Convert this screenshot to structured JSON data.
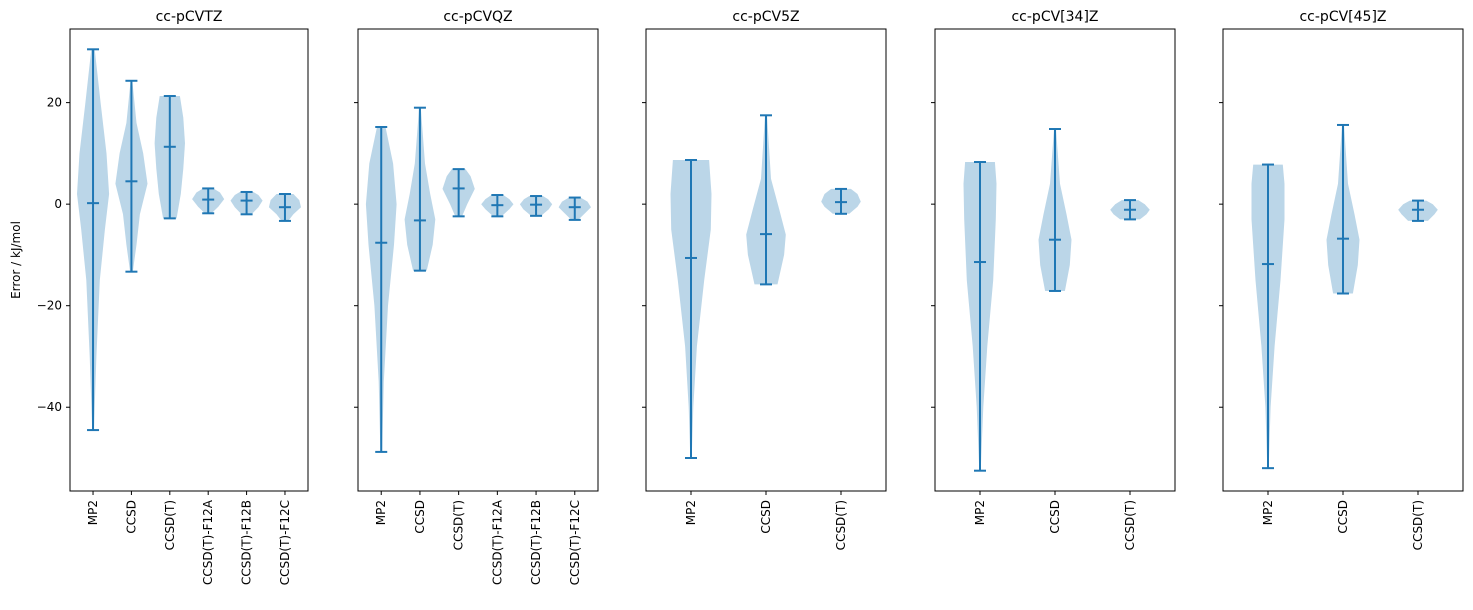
{
  "figure": {
    "ylabel": "Error / kJ/mol",
    "colors": {
      "body": "#1f77b4",
      "line": "#1f77b4"
    }
  },
  "chart_data": [
    {
      "type": "violin",
      "title": "cc-pCVTZ",
      "ylim": [
        -56.5,
        34.5
      ],
      "yticks": [
        -40,
        -20,
        0,
        20
      ],
      "categories": [
        "MP2",
        "CCSD",
        "CCSD(T)",
        "CCSD(T)-F12A",
        "CCSD(T)-F12B",
        "CCSD(T)-F12C"
      ],
      "violins": [
        {
          "min": -44.5,
          "max": 30.5,
          "median": 0.2,
          "width": [
            [
              -44.5,
              0.05
            ],
            [
              -30,
              0.2
            ],
            [
              -15,
              0.4
            ],
            [
              -5,
              0.7
            ],
            [
              2,
              0.95
            ],
            [
              10,
              0.8
            ],
            [
              20,
              0.45
            ],
            [
              30.5,
              0.1
            ]
          ]
        },
        {
          "min": -13.3,
          "max": 24.3,
          "median": 4.5,
          "width": [
            [
              -13.3,
              0.08
            ],
            [
              -8,
              0.3
            ],
            [
              -2,
              0.5
            ],
            [
              4,
              0.95
            ],
            [
              10,
              0.7
            ],
            [
              16,
              0.3
            ],
            [
              24.3,
              0.05
            ]
          ]
        },
        {
          "min": -2.8,
          "max": 21.3,
          "median": 11.3,
          "width": [
            [
              -2.8,
              0.4
            ],
            [
              2,
              0.65
            ],
            [
              7,
              0.8
            ],
            [
              12,
              0.9
            ],
            [
              17,
              0.8
            ],
            [
              21.3,
              0.6
            ]
          ]
        },
        {
          "min": -1.8,
          "max": 3.1,
          "median": 0.9,
          "width": [
            [
              -1.8,
              0.2
            ],
            [
              -0.5,
              0.6
            ],
            [
              1,
              0.95
            ],
            [
              2.3,
              0.7
            ],
            [
              3.1,
              0.3
            ]
          ]
        },
        {
          "min": -2.0,
          "max": 2.4,
          "median": 0.7,
          "width": [
            [
              -2,
              0.3
            ],
            [
              -0.6,
              0.7
            ],
            [
              0.7,
              0.95
            ],
            [
              1.8,
              0.7
            ],
            [
              2.4,
              0.4
            ]
          ]
        },
        {
          "min": -3.3,
          "max": 2.0,
          "median": -0.6,
          "width": [
            [
              -3.3,
              0.2
            ],
            [
              -2,
              0.5
            ],
            [
              -0.6,
              0.95
            ],
            [
              0.8,
              0.85
            ],
            [
              2,
              0.5
            ]
          ]
        }
      ]
    },
    {
      "type": "violin",
      "title": "cc-pCVQZ",
      "ylim": [
        -56.5,
        34.5
      ],
      "yticks": [
        -40,
        -20,
        0,
        20
      ],
      "categories": [
        "MP2",
        "CCSD",
        "CCSD(T)",
        "CCSD(T)-F12A",
        "CCSD(T)-F12B",
        "CCSD(T)-F12C"
      ],
      "violins": [
        {
          "min": -48.8,
          "max": 15.2,
          "median": -7.6,
          "width": [
            [
              -48.8,
              0.05
            ],
            [
              -35,
              0.15
            ],
            [
              -20,
              0.4
            ],
            [
              -8,
              0.75
            ],
            [
              0,
              0.9
            ],
            [
              8,
              0.7
            ],
            [
              15.2,
              0.25
            ]
          ]
        },
        {
          "min": -13.1,
          "max": 19.0,
          "median": -3.2,
          "width": [
            [
              -13.1,
              0.4
            ],
            [
              -8,
              0.75
            ],
            [
              -3,
              0.9
            ],
            [
              2,
              0.6
            ],
            [
              8,
              0.3
            ],
            [
              19,
              0.05
            ]
          ]
        },
        {
          "min": -2.4,
          "max": 6.9,
          "median": 3.1,
          "width": [
            [
              -2.4,
              0.2
            ],
            [
              0,
              0.5
            ],
            [
              3,
              0.95
            ],
            [
              5.5,
              0.7
            ],
            [
              6.9,
              0.4
            ]
          ]
        },
        {
          "min": -2.4,
          "max": 1.8,
          "median": -0.2,
          "width": [
            [
              -2.4,
              0.25
            ],
            [
              -1,
              0.7
            ],
            [
              0,
              0.95
            ],
            [
              1,
              0.7
            ],
            [
              1.8,
              0.35
            ]
          ]
        },
        {
          "min": -2.3,
          "max": 1.6,
          "median": -0.1,
          "width": [
            [
              -2.3,
              0.3
            ],
            [
              -1,
              0.75
            ],
            [
              0,
              0.95
            ],
            [
              1,
              0.7
            ],
            [
              1.6,
              0.4
            ]
          ]
        },
        {
          "min": -3.1,
          "max": 1.3,
          "median": -0.6,
          "width": [
            [
              -3.1,
              0.2
            ],
            [
              -1.8,
              0.6
            ],
            [
              -0.6,
              0.95
            ],
            [
              0.5,
              0.75
            ],
            [
              1.3,
              0.35
            ]
          ]
        }
      ]
    },
    {
      "type": "violin",
      "title": "cc-pCV5Z",
      "ylim": [
        -56.5,
        34.5
      ],
      "yticks": [
        -40,
        -20,
        0,
        20
      ],
      "categories": [
        "MP2",
        "CCSD",
        "CCSD(T)"
      ],
      "violins": [
        {
          "min": -50.0,
          "max": 8.7,
          "median": -10.6,
          "width": [
            [
              -50,
              0.02
            ],
            [
              -40,
              0.07
            ],
            [
              -28,
              0.18
            ],
            [
              -15,
              0.4
            ],
            [
              -5,
              0.6
            ],
            [
              2,
              0.62
            ],
            [
              8.7,
              0.55
            ]
          ]
        },
        {
          "min": -15.8,
          "max": 17.5,
          "median": -5.9,
          "width": [
            [
              -15.8,
              0.35
            ],
            [
              -10,
              0.55
            ],
            [
              -6,
              0.6
            ],
            [
              -1,
              0.4
            ],
            [
              5,
              0.15
            ],
            [
              17.5,
              0.03
            ]
          ]
        },
        {
          "min": -1.9,
          "max": 3.0,
          "median": 0.4,
          "width": [
            [
              -1.9,
              0.25
            ],
            [
              -0.5,
              0.5
            ],
            [
              0.5,
              0.6
            ],
            [
              2,
              0.5
            ],
            [
              3,
              0.3
            ]
          ]
        }
      ]
    },
    {
      "type": "violin",
      "title": "cc-pCV[34]Z",
      "ylim": [
        -56.5,
        34.5
      ],
      "yticks": [
        -40,
        -20,
        0,
        20
      ],
      "categories": [
        "MP2",
        "CCSD",
        "CCSD(T)"
      ],
      "violins": [
        {
          "min": -52.5,
          "max": 8.3,
          "median": -11.4,
          "width": [
            [
              -52.5,
              0.02
            ],
            [
              -40,
              0.1
            ],
            [
              -28,
              0.22
            ],
            [
              -15,
              0.4
            ],
            [
              -3,
              0.48
            ],
            [
              4,
              0.5
            ],
            [
              8.3,
              0.45
            ]
          ]
        },
        {
          "min": -17.1,
          "max": 14.8,
          "median": -7.0,
          "width": [
            [
              -17.1,
              0.3
            ],
            [
              -12,
              0.45
            ],
            [
              -7,
              0.5
            ],
            [
              -2,
              0.35
            ],
            [
              4,
              0.15
            ],
            [
              14.8,
              0.03
            ]
          ]
        },
        {
          "min": -3.0,
          "max": 0.8,
          "median": -1.1,
          "width": [
            [
              -3,
              0.3
            ],
            [
              -2,
              0.5
            ],
            [
              -1.1,
              0.6
            ],
            [
              0,
              0.45
            ],
            [
              0.8,
              0.25
            ]
          ]
        }
      ]
    },
    {
      "type": "violin",
      "title": "cc-pCV[45]Z",
      "ylim": [
        -56.5,
        34.5
      ],
      "yticks": [
        -40,
        -20,
        0,
        20
      ],
      "categories": [
        "MP2",
        "CCSD",
        "CCSD(T)"
      ],
      "violins": [
        {
          "min": -52.0,
          "max": 7.8,
          "median": -11.8,
          "width": [
            [
              -52,
              0.02
            ],
            [
              -40,
              0.08
            ],
            [
              -28,
              0.2
            ],
            [
              -15,
              0.38
            ],
            [
              -3,
              0.5
            ],
            [
              4,
              0.5
            ],
            [
              7.8,
              0.45
            ]
          ]
        },
        {
          "min": -17.6,
          "max": 15.6,
          "median": -6.8,
          "width": [
            [
              -17.6,
              0.3
            ],
            [
              -12,
              0.45
            ],
            [
              -7,
              0.5
            ],
            [
              -2,
              0.35
            ],
            [
              4,
              0.15
            ],
            [
              15.6,
              0.03
            ]
          ]
        },
        {
          "min": -3.3,
          "max": 0.7,
          "median": -1.1,
          "width": [
            [
              -3.3,
              0.3
            ],
            [
              -2,
              0.5
            ],
            [
              -1.1,
              0.6
            ],
            [
              0,
              0.45
            ],
            [
              0.7,
              0.25
            ]
          ]
        }
      ]
    }
  ]
}
